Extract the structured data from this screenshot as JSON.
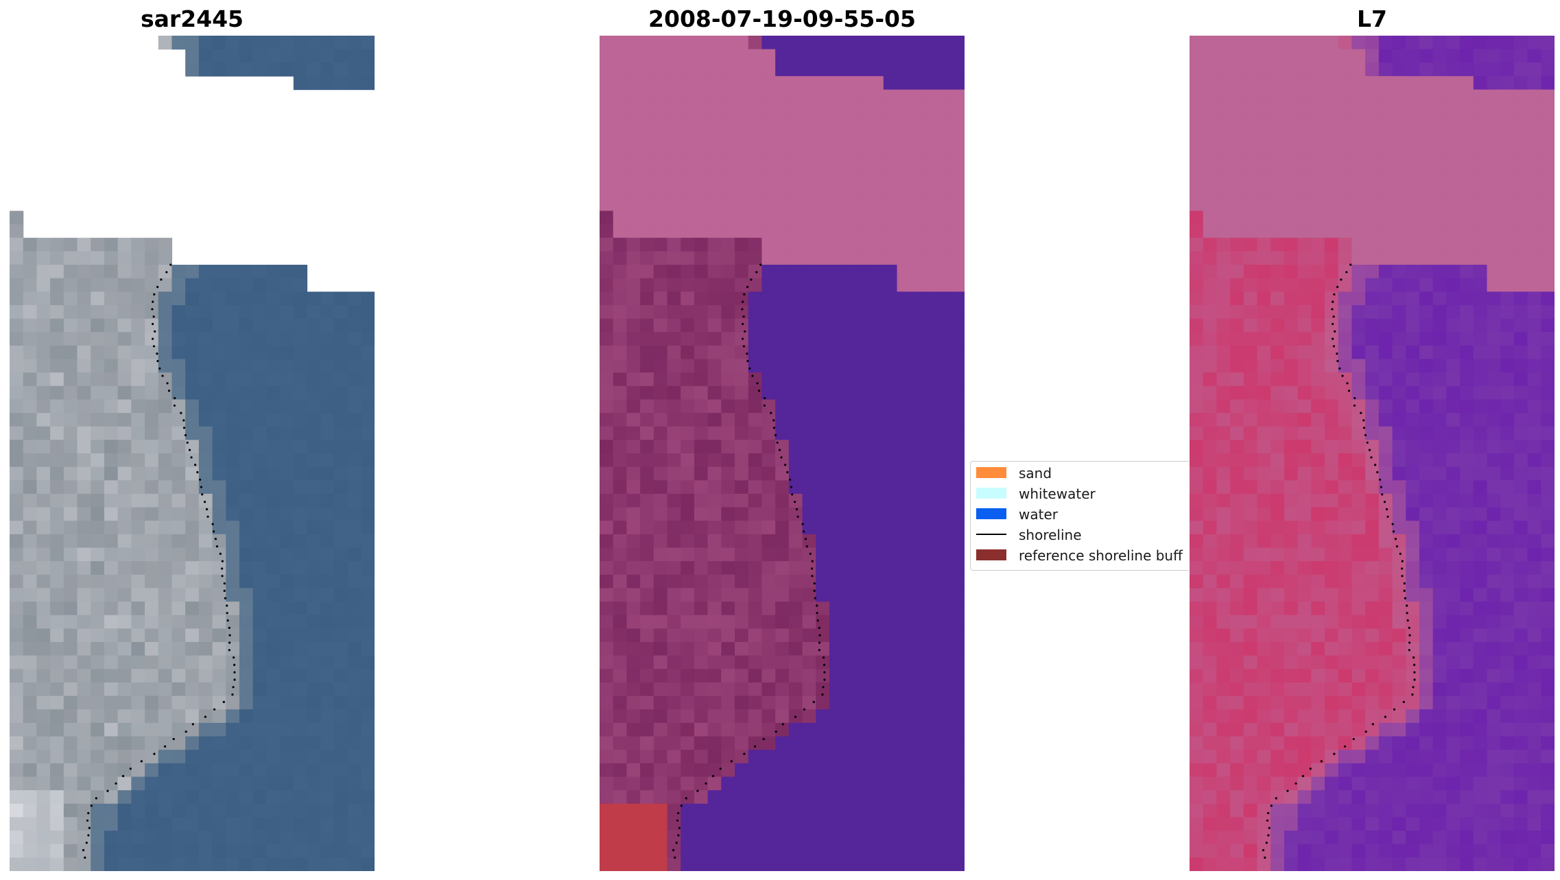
{
  "panels": [
    {
      "id": "rgb",
      "title": "sar2445"
    },
    {
      "id": "classified",
      "title": "2008-07-19-09-55-05"
    },
    {
      "id": "index",
      "title": "L7"
    }
  ],
  "legend": {
    "items": [
      {
        "label": "sand",
        "type": "patch",
        "color": "#ff8c3a"
      },
      {
        "label": "whitewater",
        "type": "patch",
        "color": "#c8fdff"
      },
      {
        "label": "water",
        "type": "patch",
        "color": "#0a5ef0"
      },
      {
        "label": "shoreline",
        "type": "line",
        "color": "#000000"
      },
      {
        "label": "reference shoreline buff",
        "type": "patch",
        "color": "#8b2e2e"
      }
    ]
  },
  "colors": {
    "nodata_pink": "#bc6596",
    "classified_water": "#55259a",
    "classified_land": "#7e2a62",
    "classified_sand": "#c03c49",
    "index_land": "#cc3a6e",
    "index_water": "#6e24ac",
    "rgb_water": "#3e5f84",
    "rgb_land": "#8f949c"
  }
}
